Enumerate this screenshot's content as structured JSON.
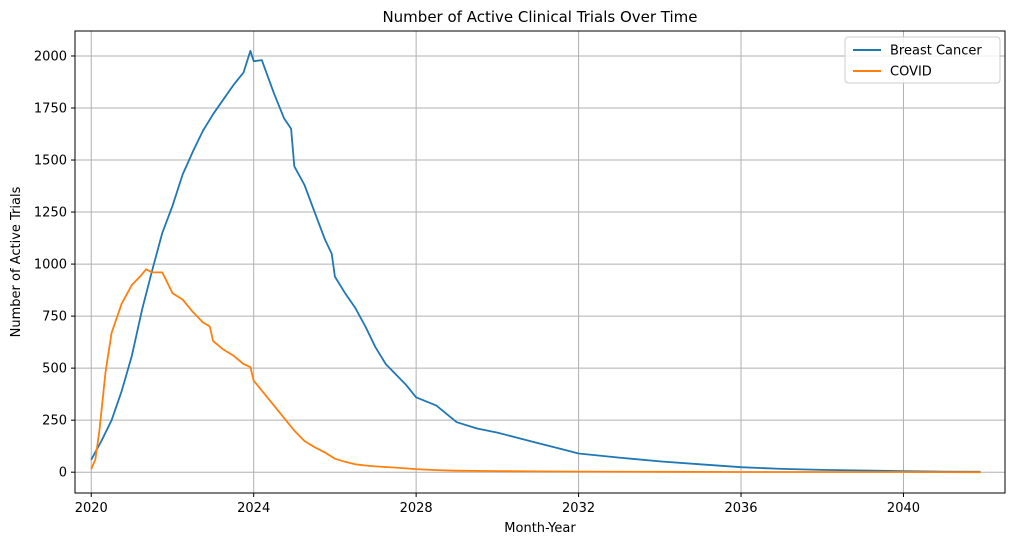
{
  "chart_data": {
    "type": "line",
    "title": "Number of Active Clinical Trials Over Time",
    "xlabel": "Month-Year",
    "ylabel": "Number of Active Trials",
    "xlim": [
      2019.6,
      2042.5
    ],
    "ylim": [
      -100,
      2120
    ],
    "xticks": [
      2020,
      2024,
      2028,
      2032,
      2036,
      2040
    ],
    "yticks": [
      0,
      250,
      500,
      750,
      1000,
      1250,
      1500,
      1750,
      2000
    ],
    "grid": true,
    "legend_position": "top-right",
    "series": [
      {
        "name": "Breast Cancer",
        "color": "#1f77b4",
        "x": [
          2020.0,
          2020.25,
          2020.5,
          2020.75,
          2021.0,
          2021.25,
          2021.5,
          2021.75,
          2022.0,
          2022.25,
          2022.5,
          2022.75,
          2023.0,
          2023.25,
          2023.5,
          2023.75,
          2023.92,
          2024.0,
          2024.2,
          2024.5,
          2024.75,
          2024.92,
          2025.0,
          2025.25,
          2025.5,
          2025.75,
          2025.92,
          2026.0,
          2026.25,
          2026.5,
          2026.75,
          2027.0,
          2027.25,
          2027.5,
          2027.75,
          2028.0,
          2028.5,
          2029.0,
          2029.5,
          2030.0,
          2030.5,
          2031.0,
          2031.5,
          2032.0,
          2033.0,
          2034.0,
          2035.0,
          2036.0,
          2037.0,
          2038.0,
          2039.0,
          2040.0,
          2041.0,
          2041.9
        ],
        "y": [
          60,
          150,
          250,
          390,
          560,
          780,
          970,
          1150,
          1280,
          1430,
          1540,
          1640,
          1720,
          1790,
          1860,
          1920,
          2025,
          1975,
          1980,
          1820,
          1700,
          1650,
          1470,
          1380,
          1250,
          1120,
          1050,
          940,
          860,
          790,
          700,
          600,
          520,
          470,
          420,
          360,
          320,
          240,
          210,
          190,
          165,
          140,
          115,
          90,
          70,
          52,
          38,
          24,
          16,
          11,
          8,
          5,
          3,
          2
        ]
      },
      {
        "name": "COVID",
        "color": "#ff7f0e",
        "x": [
          2020.0,
          2020.1,
          2020.2,
          2020.35,
          2020.5,
          2020.75,
          2021.0,
          2021.2,
          2021.35,
          2021.5,
          2021.75,
          2021.85,
          2022.0,
          2022.25,
          2022.5,
          2022.75,
          2022.92,
          2023.0,
          2023.25,
          2023.5,
          2023.75,
          2023.92,
          2024.0,
          2024.25,
          2024.5,
          2024.75,
          2025.0,
          2025.25,
          2025.5,
          2025.75,
          2026.0,
          2026.25,
          2026.5,
          2026.75,
          2027.0,
          2027.5,
          2028.0,
          2028.5,
          2029.0,
          2030.0,
          2031.0,
          2032.0,
          2034.0,
          2036.0,
          2038.0,
          2040.0,
          2041.9
        ],
        "y": [
          15,
          60,
          200,
          480,
          670,
          810,
          900,
          940,
          975,
          960,
          960,
          920,
          860,
          830,
          770,
          720,
          700,
          630,
          590,
          560,
          520,
          505,
          440,
          380,
          320,
          260,
          200,
          150,
          120,
          95,
          65,
          50,
          38,
          32,
          28,
          22,
          15,
          10,
          7,
          5,
          4,
          3,
          2,
          1,
          1,
          1,
          0
        ]
      }
    ]
  }
}
